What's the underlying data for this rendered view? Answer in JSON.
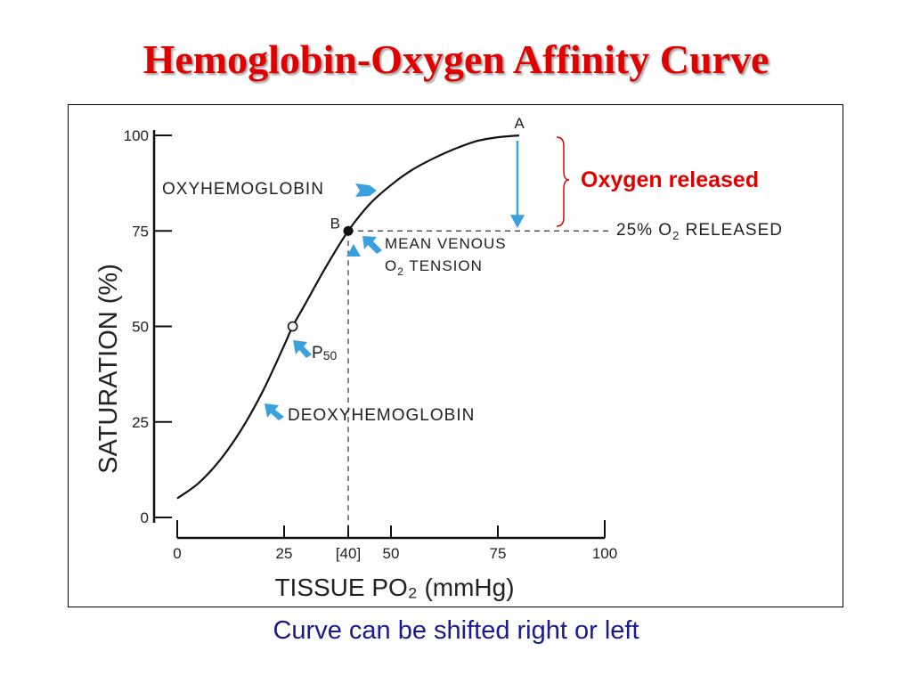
{
  "slide": {
    "title": "Hemoglobin-Oxygen Affinity Curve",
    "caption": "Curve can be shifted right or left",
    "title_color": "#e00000",
    "caption_color": "#1a1a8c"
  },
  "chart_data": {
    "type": "line",
    "title": "",
    "xlabel": "TISSUE PO₂ (mmHg)",
    "ylabel": "SATURATION (%)",
    "xlim": [
      0,
      100
    ],
    "ylim": [
      0,
      100
    ],
    "x_ticks": [
      {
        "value": 0,
        "label": "0"
      },
      {
        "value": 25,
        "label": "25"
      },
      {
        "value": 40,
        "label": "[40]"
      },
      {
        "value": 50,
        "label": "50"
      },
      {
        "value": 75,
        "label": "75"
      },
      {
        "value": 100,
        "label": "100"
      }
    ],
    "y_ticks": [
      {
        "value": 0,
        "label": "0"
      },
      {
        "value": 25,
        "label": "25"
      },
      {
        "value": 50,
        "label": "50"
      },
      {
        "value": 75,
        "label": "75"
      },
      {
        "value": 100,
        "label": "100"
      }
    ],
    "series": [
      {
        "x": [
          0,
          5,
          10,
          15,
          20,
          25,
          27,
          30,
          35,
          40,
          45,
          50,
          55,
          60,
          65,
          70,
          75,
          80
        ],
        "y": [
          5,
          9,
          15,
          23,
          33,
          45,
          50,
          56,
          66,
          75,
          82,
          87,
          91,
          94,
          96.5,
          98.5,
          99.5,
          100
        ]
      }
    ],
    "points": [
      {
        "label": "A",
        "x": 80,
        "y": 100,
        "style": "none"
      },
      {
        "label": "B",
        "x": 40,
        "y": 75,
        "style": "filled"
      },
      {
        "label": "",
        "x": 27,
        "y": 50,
        "style": "open"
      }
    ],
    "annotations": {
      "oxyhemoglobin": "OXYHEMOGLOBIN",
      "deoxyhemoglobin": "DEOXYHEMOGLOBIN",
      "p50_main": "P",
      "p50_sub": "50",
      "venous_line1": "MEAN  VENOUS",
      "venous_o": "O",
      "venous_sub": "2",
      "venous_rest": "  TENSION",
      "released_pct": "25%  O",
      "released_sub": "2",
      "released_rest": " RELEASED",
      "oxygen_released": "Oxygen released"
    },
    "colors": {
      "curve": "#111111",
      "arrow": "#3aa0e0",
      "note": "#e00000",
      "brace": "#e00000"
    }
  }
}
